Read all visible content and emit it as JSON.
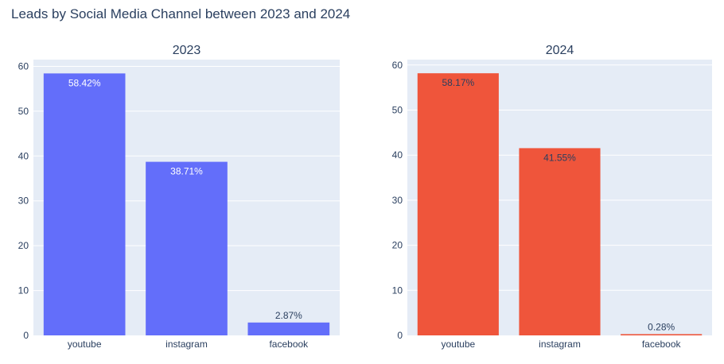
{
  "title": "Leads by Social Media Channel between 2023 and 2024",
  "colors": {
    "plot_bg": "#e5ecf6",
    "grid": "#ffffff",
    "text": "#2a3f5f",
    "series_2023": "#636efa",
    "series_2024": "#ef553b"
  },
  "chart_data": [
    {
      "type": "bar",
      "title": "2023",
      "categories": [
        "youtube",
        "instagram",
        "facebook"
      ],
      "values": [
        58.42,
        38.71,
        2.87
      ],
      "labels": [
        "58.42%",
        "38.71%",
        "2.87%"
      ],
      "ylim": [
        0,
        61.5
      ],
      "yticks": [
        0,
        10,
        20,
        30,
        40,
        50,
        60
      ],
      "ytick_labels": [
        "0",
        "10",
        "20",
        "30",
        "40",
        "50",
        "60"
      ],
      "grid": true,
      "color": "#636efa",
      "label_inside_color": "#ffffff",
      "label_outside_color": "#2a3f5f"
    },
    {
      "type": "bar",
      "title": "2024",
      "categories": [
        "youtube",
        "instagram",
        "facebook"
      ],
      "values": [
        58.17,
        41.55,
        0.28
      ],
      "labels": [
        "58.17%",
        "41.55%",
        "0.28%"
      ],
      "ylim": [
        0,
        61.2
      ],
      "yticks": [
        0,
        10,
        20,
        30,
        40,
        50,
        60
      ],
      "ytick_labels": [
        "0",
        "10",
        "20",
        "30",
        "40",
        "50",
        "60"
      ],
      "grid": true,
      "color": "#ef553b",
      "label_inside_color": "#2a3f5f",
      "label_outside_color": "#2a3f5f"
    }
  ]
}
